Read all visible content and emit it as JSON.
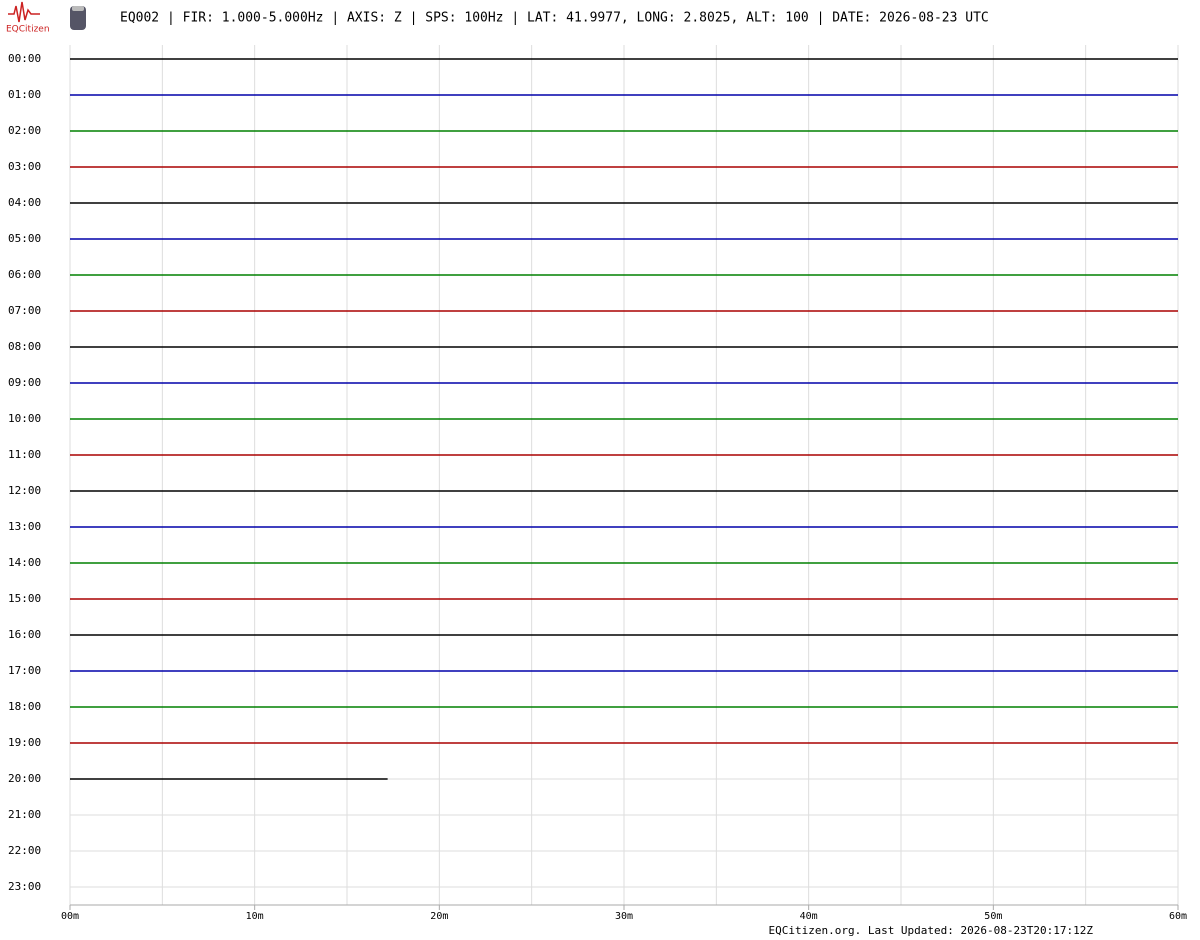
{
  "chart_data": {
    "type": "helicorder",
    "logo": "EQCitizen",
    "title": "EQ002 | FIR: 1.000-5.000Hz | AXIS: Z | SPS: 100Hz | LAT: 41.9977, LONG: 2.8025, ALT: 100 | DATE: 2026-08-23 UTC",
    "footer": "EQCitizen.org. Last Updated: 2026-08-23T20:17:12Z",
    "categories": [
      "00:00",
      "01:00",
      "02:00",
      "03:00",
      "04:00",
      "05:00",
      "06:00",
      "07:00",
      "08:00",
      "09:00",
      "10:00",
      "11:00",
      "12:00",
      "13:00",
      "14:00",
      "15:00",
      "16:00",
      "17:00",
      "18:00",
      "19:00",
      "20:00",
      "21:00",
      "22:00",
      "23:00"
    ],
    "series": [
      {
        "color": "#000000",
        "x": [
          0,
          60
        ]
      },
      {
        "color": "#0000aa",
        "x": [
          0,
          60
        ]
      },
      {
        "color": "#008000",
        "x": [
          0,
          60
        ]
      },
      {
        "color": "#aa0000",
        "x": [
          0,
          60
        ]
      },
      {
        "color": "#000000",
        "x": [
          0,
          60
        ]
      },
      {
        "color": "#0000aa",
        "x": [
          0,
          60
        ]
      },
      {
        "color": "#008000",
        "x": [
          0,
          60
        ]
      },
      {
        "color": "#aa0000",
        "x": [
          0,
          60
        ]
      },
      {
        "color": "#000000",
        "x": [
          0,
          60
        ]
      },
      {
        "color": "#0000aa",
        "x": [
          0,
          60
        ]
      },
      {
        "color": "#008000",
        "x": [
          0,
          60
        ]
      },
      {
        "color": "#aa0000",
        "x": [
          0,
          60
        ]
      },
      {
        "color": "#000000",
        "x": [
          0,
          60
        ]
      },
      {
        "color": "#0000aa",
        "x": [
          0,
          60
        ]
      },
      {
        "color": "#008000",
        "x": [
          0,
          60
        ]
      },
      {
        "color": "#aa0000",
        "x": [
          0,
          60
        ]
      },
      {
        "color": "#000000",
        "x": [
          0,
          60
        ]
      },
      {
        "color": "#0000aa",
        "x": [
          0,
          60
        ]
      },
      {
        "color": "#008000",
        "x": [
          0,
          60
        ]
      },
      {
        "color": "#aa0000",
        "x": [
          0,
          60
        ]
      },
      {
        "color": "#000000",
        "x": [
          0,
          17.2
        ]
      }
    ],
    "xlim": [
      0,
      60
    ],
    "xticks": [
      {
        "value": 0,
        "label": "00m"
      },
      {
        "value": 10,
        "label": "10m"
      },
      {
        "value": 20,
        "label": "20m"
      },
      {
        "value": 30,
        "label": "30m"
      },
      {
        "value": 40,
        "label": "40m"
      },
      {
        "value": 50,
        "label": "50m"
      },
      {
        "value": 60,
        "label": "60m"
      }
    ],
    "xminor": [
      5,
      15,
      25,
      35,
      45,
      55
    ],
    "grid": true
  }
}
